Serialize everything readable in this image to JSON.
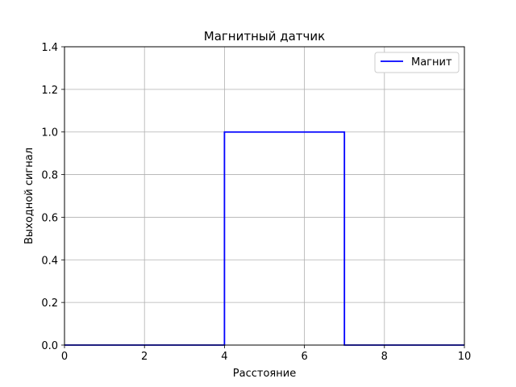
{
  "chart_data": {
    "type": "line",
    "title": "Магнитный датчик",
    "xlabel": "Расстояние",
    "ylabel": "Выходной сигнал",
    "xlim": [
      0,
      10
    ],
    "ylim": [
      0,
      1.4
    ],
    "x_ticks": [
      "0",
      "2",
      "4",
      "6",
      "8",
      "10"
    ],
    "y_ticks": [
      "0.0",
      "0.2",
      "0.4",
      "0.6",
      "0.8",
      "1.0",
      "1.2",
      "1.4"
    ],
    "grid": true,
    "legend_position": "top-right",
    "series": [
      {
        "name": "Магнит",
        "color": "#0000ff",
        "points": [
          [
            0,
            0
          ],
          [
            4,
            0
          ],
          [
            4,
            1
          ],
          [
            7,
            1
          ],
          [
            7,
            0
          ],
          [
            10,
            0
          ]
        ]
      }
    ]
  }
}
